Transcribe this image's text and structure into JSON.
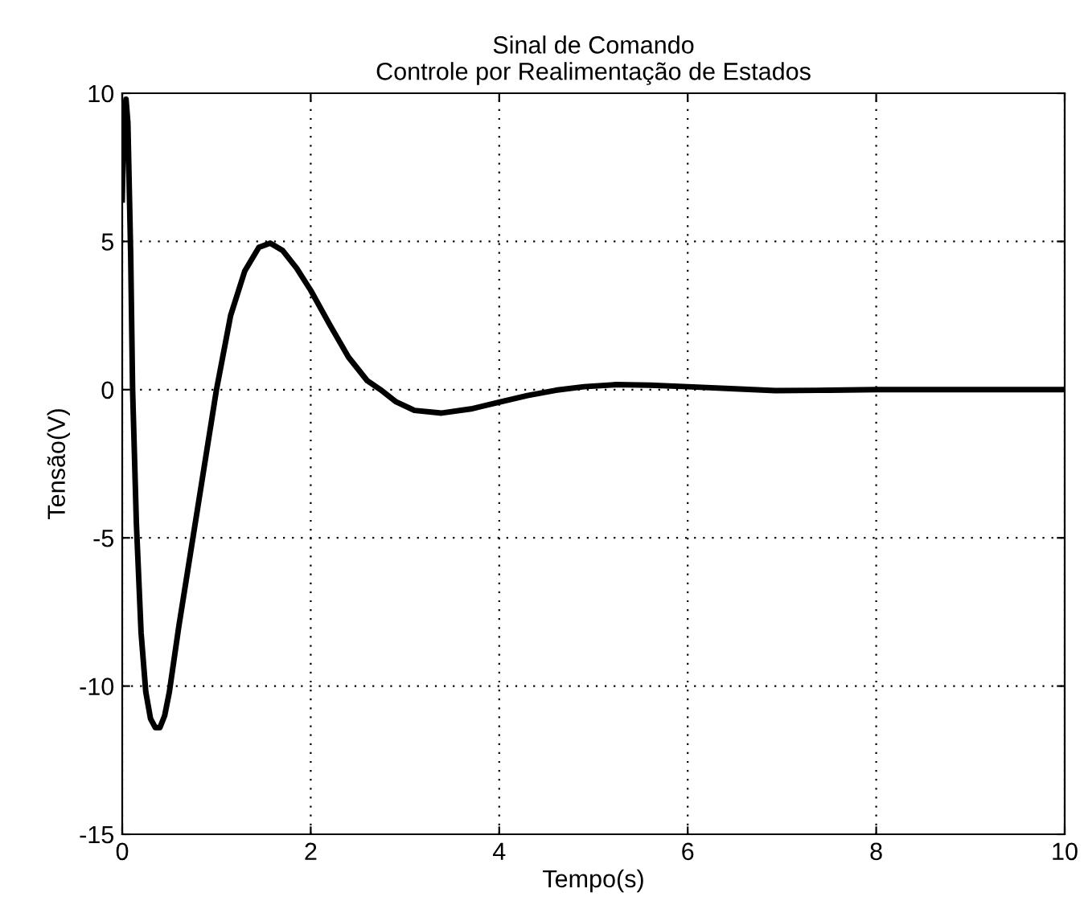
{
  "chart_data": {
    "type": "line",
    "title": "Sinal de Comando\nControle por Realimentação de Estados",
    "xlabel": "Tempo(s)",
    "ylabel": "Tensão(V)",
    "x": [
      0,
      0.02,
      0.04,
      0.06,
      0.09,
      0.11,
      0.15,
      0.2,
      0.25,
      0.3,
      0.35,
      0.4,
      0.45,
      0.5,
      0.6,
      0.75,
      0.9,
      1.0,
      1.15,
      1.3,
      1.45,
      1.57,
      1.7,
      1.85,
      2.0,
      2.2,
      2.4,
      2.6,
      2.74,
      2.9,
      3.1,
      3.39,
      3.7,
      4.0,
      4.3,
      4.6,
      4.9,
      5.24,
      5.6,
      6.0,
      6.5,
      6.93,
      7.5,
      8.0,
      9.0,
      10.0
    ],
    "series": [
      {
        "color": "#000000",
        "values": [
          6.4,
          9.3,
          9.8,
          9.0,
          4.5,
          0.0,
          -4.5,
          -8.2,
          -10.2,
          -11.1,
          -11.4,
          -11.4,
          -11.0,
          -10.2,
          -8.0,
          -5.0,
          -2.0,
          0.0,
          2.5,
          4.0,
          4.8,
          4.94,
          4.7,
          4.1,
          3.35,
          2.2,
          1.1,
          0.3,
          0.0,
          -0.4,
          -0.7,
          -0.79,
          -0.65,
          -0.42,
          -0.2,
          -0.02,
          0.1,
          0.17,
          0.15,
          0.1,
          0.03,
          -0.03,
          -0.02,
          0.0,
          0.0,
          0.0
        ]
      }
    ],
    "xlim": [
      0,
      10
    ],
    "ylim": [
      -15,
      10
    ],
    "xticks": [
      0,
      2,
      4,
      6,
      8,
      10
    ],
    "yticks": [
      -15,
      -10,
      -5,
      0,
      5,
      10
    ],
    "grid": true,
    "line_style": "solid",
    "marker": "none"
  }
}
